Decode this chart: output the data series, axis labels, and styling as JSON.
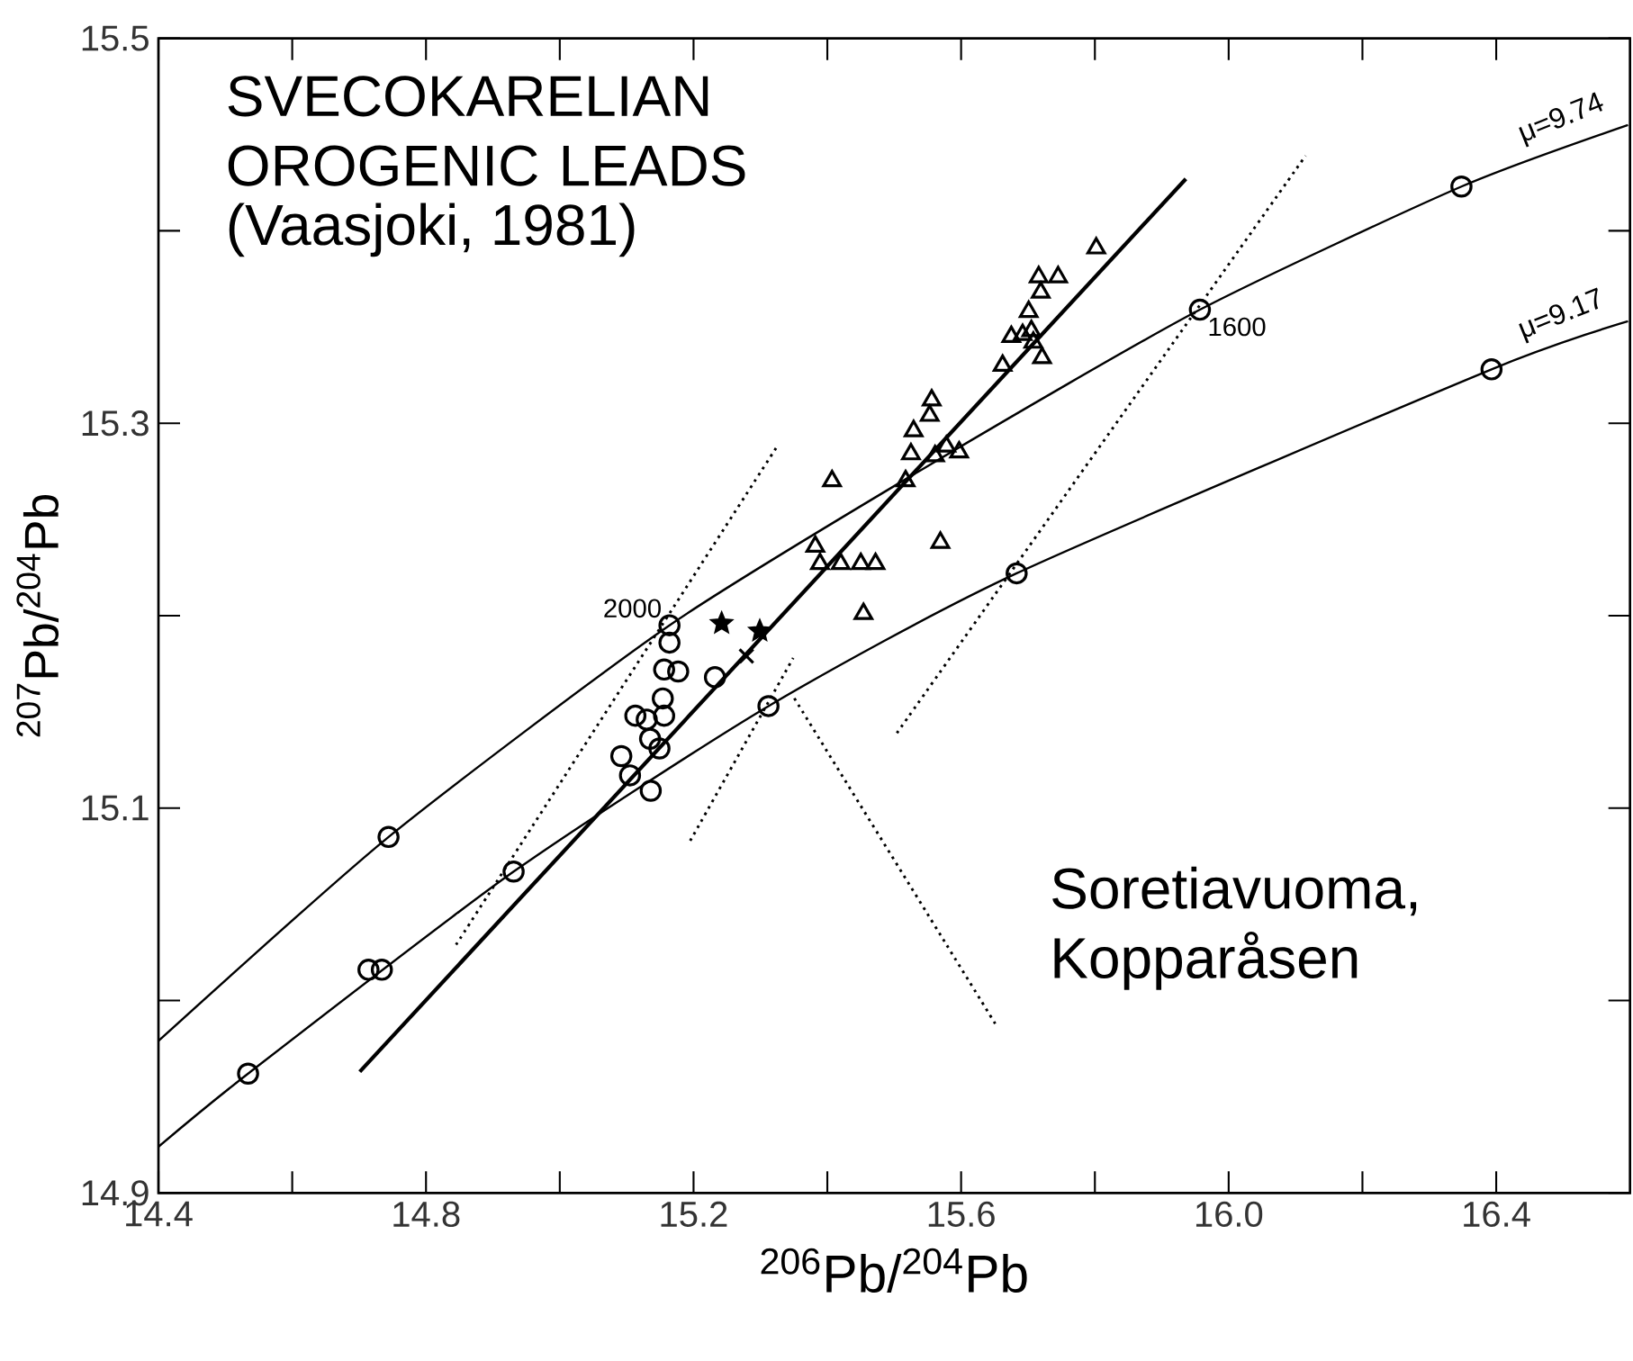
{
  "chart_data": {
    "type": "scatter",
    "title": "SVECOKARELIAN OROGENIC LEADS",
    "subtitle": "(Vaasjoki, 1981)",
    "xlabel": "$^{206}$Pb/$^{204}$Pb",
    "ylabel": "$^{207}$Pb/$^{204}$Pb",
    "xlim": [
      14.4,
      16.6
    ],
    "ylim": [
      14.9,
      15.5
    ],
    "xticks": [
      14.4,
      {
        "value": 14.6,
        "label": null
      },
      14.8,
      {
        "value": 15.0,
        "label": null
      },
      15.2,
      {
        "value": 15.4,
        "label": null
      },
      15.6,
      {
        "value": 15.8,
        "label": null
      },
      {
        "value": 16.0,
        "label": "16.0"
      },
      {
        "value": 16.2,
        "label": null
      },
      16.4
    ],
    "yticks": [
      14.9,
      {
        "value": 15.0,
        "label": null
      },
      15.1,
      {
        "value": 15.2,
        "label": null
      },
      15.3,
      {
        "value": 15.4,
        "label": null
      },
      15.5
    ],
    "grid": false,
    "annotations": [
      {
        "text": "2000",
        "x": 15.164,
        "y": 15.195
      },
      {
        "text": "1600",
        "x": 15.957,
        "y": 15.359
      },
      "Soretiavuoma, Kopparåsen"
    ],
    "series": [
      {
        "name": "μ=9.74",
        "type": "line",
        "color": "#000000",
        "line_style": "solid",
        "marker": "none",
        "x": [
          14.4,
          14.744,
          15.164,
          15.561,
          15.957,
          16.348,
          16.597
        ],
        "values": [
          14.979,
          15.085,
          15.195,
          15.28,
          15.359,
          15.423,
          15.455
        ]
      },
      {
        "name": "μ=9.17",
        "type": "line",
        "color": "#000000",
        "line_style": "solid",
        "marker": "none",
        "x": [
          14.4,
          14.534,
          14.931,
          15.312,
          15.683,
          16.393,
          16.597
        ],
        "values": [
          14.924,
          14.962,
          15.067,
          15.153,
          15.222,
          15.328,
          15.353
        ]
      },
      {
        "type": "scatter",
        "color": "#000000",
        "marker": "circle",
        "x": [
          14.744,
          15.164,
          15.957,
          16.348,
          14.534,
          14.931,
          15.312,
          15.683,
          16.393
        ],
        "values": [
          15.085,
          15.195,
          15.359,
          15.423,
          14.962,
          15.067,
          15.153,
          15.222,
          15.328
        ]
      },
      {
        "type": "line",
        "color": "#000000",
        "line_style": "dotted",
        "marker": "none",
        "x": [
          14.845,
          15.325
        ],
        "values": [
          15.029,
          15.288
        ]
      },
      {
        "type": "line",
        "color": "#000000",
        "line_style": "dotted",
        "marker": "none",
        "x": [
          15.195,
          15.349
        ],
        "values": [
          15.083,
          15.178
        ]
      },
      {
        "type": "line",
        "color": "#000000",
        "line_style": "dotted",
        "marker": "none",
        "x": [
          15.504,
          16.115
        ],
        "values": [
          15.139,
          15.439
        ]
      },
      {
        "type": "line",
        "color": "#000000",
        "line_style": "dotted",
        "marker": "none",
        "x": [
          15.651,
          15.349
        ],
        "values": [
          14.988,
          15.158
        ]
      },
      {
        "type": "line",
        "color": "#000000",
        "line_style": "solid",
        "marker": "none",
        "x": [
          14.701,
          15.936
        ],
        "values": [
          14.963,
          15.427
        ]
      },
      {
        "type": "scatter",
        "color": "#000000",
        "marker": "circle",
        "x": [
          15.164,
          15.156,
          15.177,
          15.232,
          15.154,
          15.113,
          15.13,
          15.156,
          15.149,
          15.092,
          15.105,
          15.136
        ],
        "values": [
          15.186,
          15.172,
          15.171,
          15.168,
          15.157,
          15.148,
          15.146,
          15.148,
          15.131,
          15.127,
          15.117,
          15.109
        ]
      },
      {
        "type": "scatter",
        "color": "#000000",
        "marker": "circle",
        "x": [
          15.135,
          14.714,
          14.734
        ],
        "values": [
          15.136,
          15.016,
          15.016
        ]
      },
      {
        "type": "scatter",
        "color": "#000000",
        "marker": "triangle",
        "x": [
          15.407,
          15.382,
          15.389,
          15.42,
          15.45,
          15.472,
          15.454,
          15.569,
          15.517,
          15.525,
          15.529,
          15.556,
          15.553,
          15.561,
          15.578,
          15.597,
          15.705
        ],
        "values": [
          15.27,
          15.236,
          15.227,
          15.227,
          15.227,
          15.227,
          15.201,
          15.238,
          15.27,
          15.284,
          15.296,
          15.312,
          15.304,
          15.283,
          15.288,
          15.285,
          15.348
        ]
      },
      {
        "type": "scatter",
        "color": "#000000",
        "marker": "triangle",
        "x": [
          15.662,
          15.675,
          15.692,
          15.701,
          15.719,
          15.716,
          15.745,
          15.802,
          15.708,
          15.721
        ],
        "values": [
          15.33,
          15.345,
          15.346,
          15.358,
          15.368,
          15.376,
          15.376,
          15.391,
          15.342,
          15.334
        ]
      },
      {
        "type": "scatter",
        "color": "#000000",
        "marker": "star",
        "x": [
          15.242,
          15.299
        ],
        "values": [
          15.196,
          15.192
        ]
      },
      {
        "type": "scatter",
        "color": "#000000",
        "marker": "cross",
        "x": [
          15.279
        ],
        "values": [
          15.179
        ]
      }
    ]
  }
}
